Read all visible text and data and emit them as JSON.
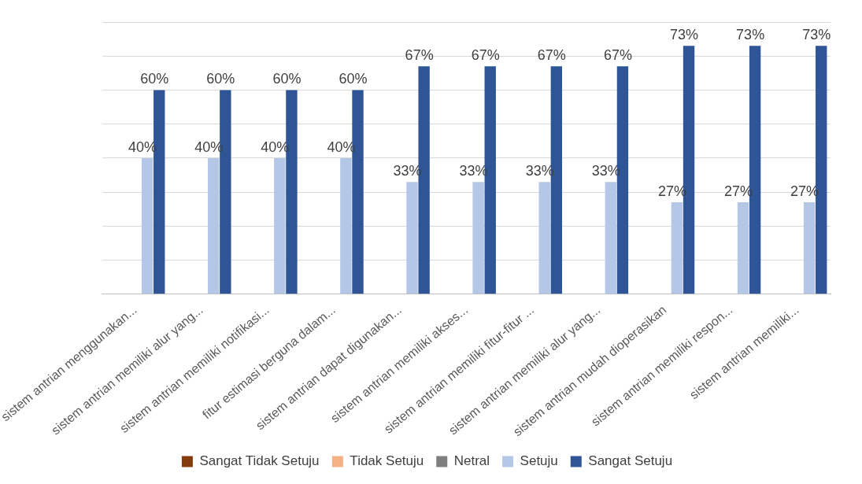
{
  "chart_data": {
    "type": "bar",
    "categories": [
      "sistem antrian menggunakan...",
      "sistem antrian memiliki alur yang...",
      "sistem antrian memiliki notifikasi...",
      "fitur estimasi berguna dalam...",
      "sistem antrian dapat digunakan...",
      "sistem antrian memiliki akses...",
      "sistem antrian memiliki fitur-fitur ...",
      "sistem antrian memiliki alur yang...",
      "sistem antrian mudah dioperasikan",
      "sistem antrian memiliki respon...",
      "sistem antrian memiliki..."
    ],
    "series": [
      {
        "name": "Sangat Tidak Setuju",
        "color": "#843c0c",
        "values": [
          null,
          null,
          null,
          null,
          null,
          null,
          null,
          null,
          null,
          null,
          null
        ]
      },
      {
        "name": "Tidak Setuju",
        "color": "#f4b183",
        "values": [
          null,
          null,
          null,
          null,
          null,
          null,
          null,
          null,
          null,
          null,
          null
        ]
      },
      {
        "name": "Netral",
        "color": "#7f7f7f",
        "values": [
          null,
          null,
          null,
          null,
          null,
          null,
          null,
          null,
          null,
          null,
          null
        ]
      },
      {
        "name": "Setuju",
        "color": "#b4c7e7",
        "values": [
          40,
          40,
          40,
          40,
          33,
          33,
          33,
          33,
          27,
          27,
          27
        ],
        "value_labels": [
          "40%",
          "40%",
          "40%",
          "40%",
          "33%",
          "33%",
          "33%",
          "33%",
          "27%",
          "27%",
          "27%"
        ]
      },
      {
        "name": "Sangat Setuju",
        "color": "#2f5597",
        "values": [
          60,
          60,
          60,
          60,
          67,
          67,
          67,
          67,
          73,
          73,
          73
        ],
        "value_labels": [
          "60%",
          "60%",
          "60%",
          "60%",
          "67%",
          "67%",
          "67%",
          "67%",
          "73%",
          "73%",
          "73%"
        ]
      }
    ],
    "ylim": [
      0,
      80
    ],
    "yticks": [
      {
        "value": 0,
        "label": null
      },
      {
        "value": 10,
        "label": null
      },
      {
        "value": 20,
        "label": null
      },
      {
        "value": 30,
        "label": null
      },
      {
        "value": 40,
        "label": null
      },
      {
        "value": 50,
        "label": null
      },
      {
        "value": 60,
        "label": null
      },
      {
        "value": 70,
        "label": null
      },
      {
        "value": 80,
        "label": null
      }
    ],
    "tick_labels": "x",
    "grid": "y",
    "legend": "bottom"
  }
}
